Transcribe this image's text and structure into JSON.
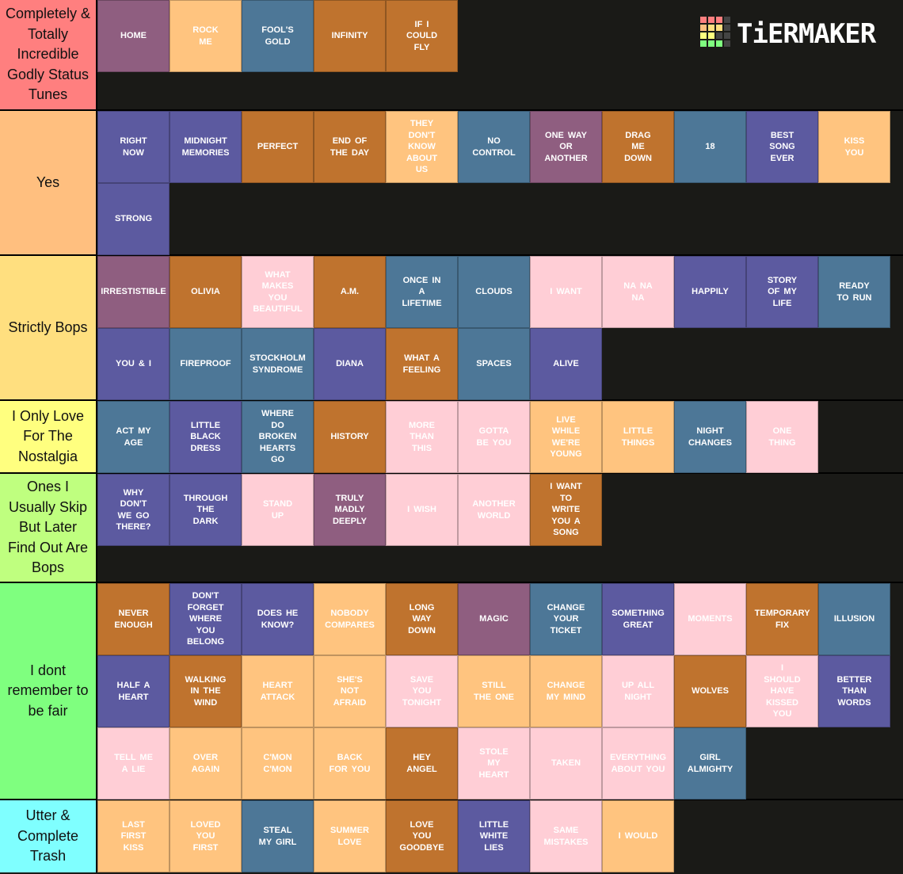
{
  "logo": "TiERMAKER",
  "tiers": [
    {
      "label": "Completely & Totally Incredible Godly Status Tunes",
      "color": "#ff7f7f",
      "items": [
        {
          "text": "HOME",
          "color": "#8f5e80"
        },
        {
          "text": "ROCK ME",
          "color": "#ffc47f"
        },
        {
          "text": "FOOL'S GOLD",
          "color": "#4d7797"
        },
        {
          "text": "INFINITY",
          "color": "#bf732e"
        },
        {
          "text": "IF I COULD FLY",
          "color": "#bf732e"
        }
      ]
    },
    {
      "label": "Yes",
      "color": "#ffbf7f",
      "items": [
        {
          "text": "RIGHT NOW",
          "color": "#5c5aa0"
        },
        {
          "text": "MIDNIGHT MEMORIES",
          "color": "#5c5aa0"
        },
        {
          "text": "PERFECT",
          "color": "#bf732e"
        },
        {
          "text": "END OF THE DAY",
          "color": "#bf732e"
        },
        {
          "text": "THEY DON'T KNOW ABOUT US",
          "color": "#ffc47f"
        },
        {
          "text": "NO CONTROL",
          "color": "#4d7797"
        },
        {
          "text": "ONE WAY OR ANOTHER",
          "color": "#8f5e80"
        },
        {
          "text": "DRAG ME DOWN",
          "color": "#bf732e"
        },
        {
          "text": "18",
          "color": "#4d7797"
        },
        {
          "text": "BEST SONG EVER",
          "color": "#5c5aa0"
        },
        {
          "text": "KISS YOU",
          "color": "#ffc47f"
        },
        {
          "text": "STRONG",
          "color": "#5c5aa0"
        }
      ]
    },
    {
      "label": "Strictly Bops",
      "color": "#ffdf7f",
      "items": [
        {
          "text": "IRRESTISTIBLE",
          "color": "#8f5e80"
        },
        {
          "text": "OLIVIA",
          "color": "#bf732e"
        },
        {
          "text": "WHAT MAKES YOU BEAUTIFUL",
          "color": "#ffced6"
        },
        {
          "text": "A.M.",
          "color": "#bf732e"
        },
        {
          "text": "ONCE IN A LIFETIME",
          "color": "#4d7797"
        },
        {
          "text": "CLOUDS",
          "color": "#4d7797"
        },
        {
          "text": "I WANT",
          "color": "#ffced6"
        },
        {
          "text": "NA NA NA",
          "color": "#ffced6"
        },
        {
          "text": "HAPPILY",
          "color": "#5c5aa0"
        },
        {
          "text": "STORY OF MY LIFE",
          "color": "#5c5aa0"
        },
        {
          "text": "READY TO RUN",
          "color": "#4d7797"
        },
        {
          "text": "YOU & I",
          "color": "#5c5aa0"
        },
        {
          "text": "FIREPROOF",
          "color": "#4d7797"
        },
        {
          "text": "STOCKHOLM SYNDROME",
          "color": "#4d7797"
        },
        {
          "text": "DIANA",
          "color": "#5c5aa0"
        },
        {
          "text": "WHAT A FEELING",
          "color": "#bf732e"
        },
        {
          "text": "SPACES",
          "color": "#4d7797"
        },
        {
          "text": "ALIVE",
          "color": "#5c5aa0"
        }
      ]
    },
    {
      "label": "I Only Love For The Nostalgia",
      "color": "#ffff7f",
      "items": [
        {
          "text": "ACT MY AGE",
          "color": "#4d7797"
        },
        {
          "text": "LITTLE BLACK DRESS",
          "color": "#5c5aa0"
        },
        {
          "text": "WHERE DO BROKEN HEARTS GO",
          "color": "#4d7797"
        },
        {
          "text": "HISTORY",
          "color": "#bf732e"
        },
        {
          "text": "MORE THAN THIS",
          "color": "#ffced6"
        },
        {
          "text": "GOTTA BE YOU",
          "color": "#ffced6"
        },
        {
          "text": "LIVE WHILE WE'RE YOUNG",
          "color": "#ffc47f"
        },
        {
          "text": "LITTLE THINGS",
          "color": "#ffc47f"
        },
        {
          "text": "NIGHT CHANGES",
          "color": "#4d7797"
        },
        {
          "text": "ONE THING",
          "color": "#ffced6"
        }
      ]
    },
    {
      "label": "Ones I Usually Skip But Later Find Out Are Bops",
      "color": "#bfff7f",
      "items": [
        {
          "text": "WHY DON'T WE GO THERE?",
          "color": "#5c5aa0"
        },
        {
          "text": "THROUGH THE DARK",
          "color": "#5c5aa0"
        },
        {
          "text": "STAND UP",
          "color": "#ffced6"
        },
        {
          "text": "TRULY MADLY DEEPLY",
          "color": "#8f5e80"
        },
        {
          "text": "I WISH",
          "color": "#ffced6"
        },
        {
          "text": "ANOTHER WORLD",
          "color": "#ffced6"
        },
        {
          "text": "I WANT TO WRITE YOU A SONG",
          "color": "#bf732e"
        }
      ]
    },
    {
      "label": "I dont remember to be fair",
      "color": "#7fff7f",
      "items": [
        {
          "text": "NEVER ENOUGH",
          "color": "#bf732e"
        },
        {
          "text": "DON'T FORGET WHERE YOU BELONG",
          "color": "#5c5aa0"
        },
        {
          "text": "DOES HE KNOW?",
          "color": "#5c5aa0"
        },
        {
          "text": "NOBODY COMPARES",
          "color": "#ffc47f"
        },
        {
          "text": "LONG WAY DOWN",
          "color": "#bf732e"
        },
        {
          "text": "MAGIC",
          "color": "#8f5e80"
        },
        {
          "text": "CHANGE YOUR TICKET",
          "color": "#4d7797"
        },
        {
          "text": "SOMETHING GREAT",
          "color": "#5c5aa0"
        },
        {
          "text": "MOMENTS",
          "color": "#ffced6"
        },
        {
          "text": "TEMPORARY FIX",
          "color": "#bf732e"
        },
        {
          "text": "ILLUSION",
          "color": "#4d7797"
        },
        {
          "text": "HALF A HEART",
          "color": "#5c5aa0"
        },
        {
          "text": "WALKING IN THE WIND",
          "color": "#bf732e"
        },
        {
          "text": "HEART ATTACK",
          "color": "#ffc47f"
        },
        {
          "text": "SHE'S NOT AFRAID",
          "color": "#ffc47f"
        },
        {
          "text": "SAVE YOU TONIGHT",
          "color": "#ffced6"
        },
        {
          "text": "STILL THE ONE",
          "color": "#ffc47f"
        },
        {
          "text": "CHANGE MY MIND",
          "color": "#ffc47f"
        },
        {
          "text": "UP ALL NIGHT",
          "color": "#ffced6"
        },
        {
          "text": "WOLVES",
          "color": "#bf732e"
        },
        {
          "text": "I SHOULD HAVE KISSED YOU",
          "color": "#ffced6"
        },
        {
          "text": "BETTER THAN WORDS",
          "color": "#5c5aa0"
        },
        {
          "text": "TELL ME A LIE",
          "color": "#ffced6"
        },
        {
          "text": "OVER AGAIN",
          "color": "#ffc47f"
        },
        {
          "text": "C'MON C'MON",
          "color": "#ffc47f"
        },
        {
          "text": "BACK FOR YOU",
          "color": "#ffc47f"
        },
        {
          "text": "HEY ANGEL",
          "color": "#bf732e"
        },
        {
          "text": "STOLE MY HEART",
          "color": "#ffced6"
        },
        {
          "text": "TAKEN",
          "color": "#ffced6"
        },
        {
          "text": "EVERYTHING ABOUT YOU",
          "color": "#ffced6"
        },
        {
          "text": "GIRL ALMIGHTY",
          "color": "#4d7797"
        }
      ]
    },
    {
      "label": "Utter & Complete Trash",
      "color": "#7fffff",
      "items": [
        {
          "text": "LAST FIRST KISS",
          "color": "#ffc47f"
        },
        {
          "text": "LOVED YOU FIRST",
          "color": "#ffc47f"
        },
        {
          "text": "STEAL MY GIRL",
          "color": "#4d7797"
        },
        {
          "text": "SUMMER LOVE",
          "color": "#ffc47f"
        },
        {
          "text": "LOVE YOU GOODBYE",
          "color": "#bf732e"
        },
        {
          "text": "LITTLE WHITE LIES",
          "color": "#5c5aa0"
        },
        {
          "text": "SAME MISTAKES",
          "color": "#ffced6"
        },
        {
          "text": "I WOULD",
          "color": "#ffc47f"
        }
      ]
    }
  ]
}
